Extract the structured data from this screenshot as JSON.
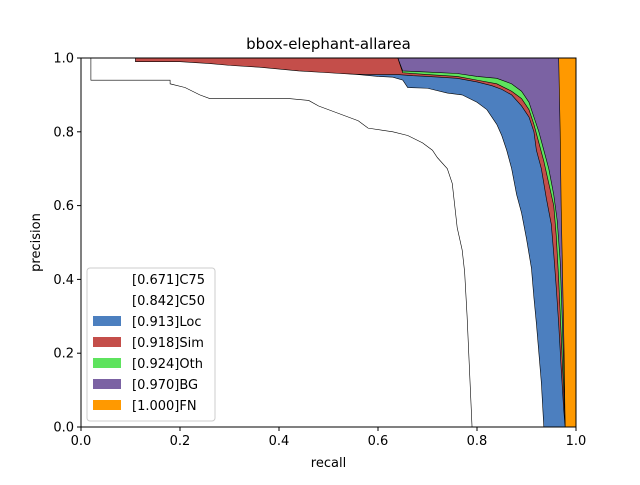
{
  "chart_data": {
    "type": "area",
    "title": "bbox-elephant-allarea",
    "xlabel": "recall",
    "ylabel": "precision",
    "xlim": [
      0,
      1
    ],
    "ylim": [
      0,
      1
    ],
    "x_ticks": [
      "0.0",
      "0.2",
      "0.4",
      "0.6",
      "0.8",
      "1.0"
    ],
    "y_ticks": [
      "0.0",
      "0.2",
      "0.4",
      "0.6",
      "0.8",
      "1.0"
    ],
    "legend_position": "lower-left",
    "grid": false,
    "series": [
      {
        "name": "[0.671]C75",
        "color": "#ffffff",
        "points": [
          [
            0.0,
            1.0
          ],
          [
            0.02,
            1.0
          ],
          [
            0.02,
            0.94
          ],
          [
            0.18,
            0.94
          ],
          [
            0.18,
            0.93
          ],
          [
            0.21,
            0.92
          ],
          [
            0.24,
            0.9
          ],
          [
            0.26,
            0.89
          ],
          [
            0.36,
            0.89
          ],
          [
            0.42,
            0.89
          ],
          [
            0.46,
            0.885
          ],
          [
            0.48,
            0.87
          ],
          [
            0.52,
            0.85
          ],
          [
            0.56,
            0.83
          ],
          [
            0.58,
            0.81
          ],
          [
            0.63,
            0.8
          ],
          [
            0.66,
            0.79
          ],
          [
            0.69,
            0.77
          ],
          [
            0.71,
            0.75
          ],
          [
            0.72,
            0.73
          ],
          [
            0.74,
            0.7
          ],
          [
            0.75,
            0.66
          ],
          [
            0.755,
            0.6
          ],
          [
            0.76,
            0.54
          ],
          [
            0.77,
            0.48
          ],
          [
            0.775,
            0.42
          ],
          [
            0.78,
            0.3
          ],
          [
            0.785,
            0.15
          ],
          [
            0.79,
            0.0
          ]
        ]
      },
      {
        "name": "[0.842]C50",
        "color": "#ffffff",
        "points": [
          [
            0.0,
            1.0
          ],
          [
            0.11,
            1.0
          ],
          [
            0.11,
            0.99
          ],
          [
            0.2,
            0.99
          ],
          [
            0.26,
            0.985
          ],
          [
            0.3,
            0.98
          ],
          [
            0.36,
            0.975
          ],
          [
            0.44,
            0.965
          ],
          [
            0.5,
            0.96
          ],
          [
            0.56,
            0.955
          ],
          [
            0.6,
            0.95
          ],
          [
            0.63,
            0.948
          ],
          [
            0.65,
            0.94
          ],
          [
            0.66,
            0.92
          ],
          [
            0.7,
            0.918
          ],
          [
            0.74,
            0.905
          ],
          [
            0.77,
            0.9
          ],
          [
            0.8,
            0.88
          ],
          [
            0.82,
            0.86
          ],
          [
            0.84,
            0.82
          ],
          [
            0.85,
            0.79
          ],
          [
            0.86,
            0.75
          ],
          [
            0.87,
            0.7
          ],
          [
            0.88,
            0.63
          ],
          [
            0.89,
            0.58
          ],
          [
            0.9,
            0.51
          ],
          [
            0.91,
            0.43
          ],
          [
            0.915,
            0.35
          ],
          [
            0.92,
            0.28
          ],
          [
            0.925,
            0.2
          ],
          [
            0.93,
            0.12
          ],
          [
            0.935,
            0.0
          ]
        ]
      },
      {
        "name": "[0.913]Loc",
        "color": "#4c7fbf",
        "points": [
          [
            0.0,
            1.0
          ],
          [
            0.03,
            1.0
          ],
          [
            0.03,
            0.98
          ],
          [
            0.12,
            0.98
          ],
          [
            0.2,
            0.975
          ],
          [
            0.28,
            0.97
          ],
          [
            0.36,
            0.965
          ],
          [
            0.44,
            0.96
          ],
          [
            0.5,
            0.958
          ],
          [
            0.58,
            0.955
          ],
          [
            0.64,
            0.955
          ],
          [
            0.67,
            0.952
          ],
          [
            0.7,
            0.95
          ],
          [
            0.76,
            0.945
          ],
          [
            0.8,
            0.935
          ],
          [
            0.83,
            0.925
          ],
          [
            0.85,
            0.915
          ],
          [
            0.87,
            0.9
          ],
          [
            0.89,
            0.87
          ],
          [
            0.905,
            0.84
          ],
          [
            0.915,
            0.8
          ],
          [
            0.92,
            0.75
          ],
          [
            0.93,
            0.7
          ],
          [
            0.94,
            0.62
          ],
          [
            0.95,
            0.55
          ],
          [
            0.955,
            0.47
          ],
          [
            0.96,
            0.38
          ],
          [
            0.965,
            0.28
          ],
          [
            0.97,
            0.16
          ],
          [
            0.975,
            0.05
          ],
          [
            0.978,
            0.0
          ]
        ]
      },
      {
        "name": "[0.918]Sim",
        "color": "#c44e4a",
        "points": [
          [
            0.0,
            1.0
          ],
          [
            0.64,
            1.0
          ],
          [
            0.65,
            0.96
          ],
          [
            0.7,
            0.955
          ],
          [
            0.76,
            0.95
          ],
          [
            0.8,
            0.94
          ],
          [
            0.84,
            0.93
          ],
          [
            0.87,
            0.91
          ],
          [
            0.89,
            0.89
          ],
          [
            0.905,
            0.86
          ],
          [
            0.915,
            0.82
          ],
          [
            0.925,
            0.77
          ],
          [
            0.935,
            0.72
          ],
          [
            0.945,
            0.66
          ],
          [
            0.955,
            0.6
          ],
          [
            0.96,
            0.52
          ],
          [
            0.965,
            0.4
          ],
          [
            0.97,
            0.25
          ],
          [
            0.975,
            0.1
          ],
          [
            0.978,
            0.0
          ]
        ]
      },
      {
        "name": "[0.924]Oth",
        "color": "#5ee35e",
        "points": [
          [
            0.0,
            1.0
          ],
          [
            0.64,
            1.0
          ],
          [
            0.65,
            0.965
          ],
          [
            0.7,
            0.962
          ],
          [
            0.76,
            0.958
          ],
          [
            0.8,
            0.95
          ],
          [
            0.84,
            0.945
          ],
          [
            0.87,
            0.93
          ],
          [
            0.89,
            0.91
          ],
          [
            0.905,
            0.88
          ],
          [
            0.915,
            0.84
          ],
          [
            0.925,
            0.8
          ],
          [
            0.935,
            0.75
          ],
          [
            0.945,
            0.7
          ],
          [
            0.955,
            0.63
          ],
          [
            0.962,
            0.56
          ],
          [
            0.968,
            0.45
          ],
          [
            0.972,
            0.3
          ],
          [
            0.976,
            0.12
          ],
          [
            0.978,
            0.0
          ]
        ]
      },
      {
        "name": "[0.970]BG",
        "color": "#7b62a3",
        "points": [
          [
            0.0,
            1.0
          ],
          [
            0.965,
            1.0
          ],
          [
            0.968,
            0.8
          ],
          [
            0.97,
            0.6
          ],
          [
            0.973,
            0.4
          ],
          [
            0.976,
            0.2
          ],
          [
            0.978,
            0.0
          ]
        ]
      },
      {
        "name": "[1.000]FN",
        "color": "#ff9900",
        "points": [
          [
            0.0,
            1.0
          ],
          [
            1.0,
            1.0
          ],
          [
            1.0,
            0.0
          ]
        ]
      }
    ]
  }
}
